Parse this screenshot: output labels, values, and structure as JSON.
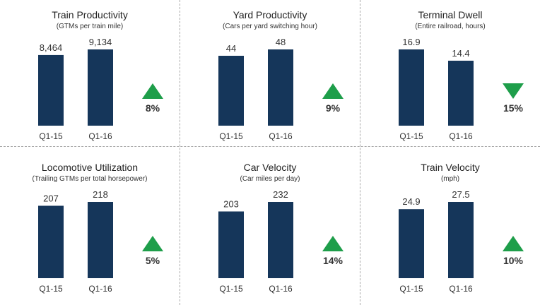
{
  "colors": {
    "bar": "#15365a",
    "up": "#1e9e4a",
    "down": "#1e9e4a"
  },
  "chart_data": [
    {
      "type": "bar",
      "title": "Train Productivity",
      "subtitle": "(GTMs per train mile)",
      "categories": [
        "Q1-15",
        "Q1-16"
      ],
      "values": [
        8464,
        9134
      ],
      "value_labels": [
        "8,464",
        "9,134"
      ],
      "change": "8%",
      "direction": "up"
    },
    {
      "type": "bar",
      "title": "Yard Productivity",
      "subtitle": "(Cars per yard switching hour)",
      "categories": [
        "Q1-15",
        "Q1-16"
      ],
      "values": [
        44,
        48
      ],
      "value_labels": [
        "44",
        "48"
      ],
      "change": "9%",
      "direction": "up"
    },
    {
      "type": "bar",
      "title": "Terminal Dwell",
      "subtitle": "(Entire railroad, hours)",
      "categories": [
        "Q1-15",
        "Q1-16"
      ],
      "values": [
        16.9,
        14.4
      ],
      "value_labels": [
        "16.9",
        "14.4"
      ],
      "change": "15%",
      "direction": "down"
    },
    {
      "type": "bar",
      "title": "Locomotive Utilization",
      "subtitle": "(Trailing GTMs per total horsepower)",
      "categories": [
        "Q1-15",
        "Q1-16"
      ],
      "values": [
        207,
        218
      ],
      "value_labels": [
        "207",
        "218"
      ],
      "change": "5%",
      "direction": "up"
    },
    {
      "type": "bar",
      "title": "Car Velocity",
      "subtitle": "(Car miles per day)",
      "categories": [
        "Q1-15",
        "Q1-16"
      ],
      "values": [
        203,
        232
      ],
      "value_labels": [
        "203",
        "232"
      ],
      "change": "14%",
      "direction": "up"
    },
    {
      "type": "bar",
      "title": "Train Velocity",
      "subtitle": "(mph)",
      "categories": [
        "Q1-15",
        "Q1-16"
      ],
      "values": [
        24.9,
        27.5
      ],
      "value_labels": [
        "24.9",
        "27.5"
      ],
      "change": "10%",
      "direction": "up"
    }
  ]
}
